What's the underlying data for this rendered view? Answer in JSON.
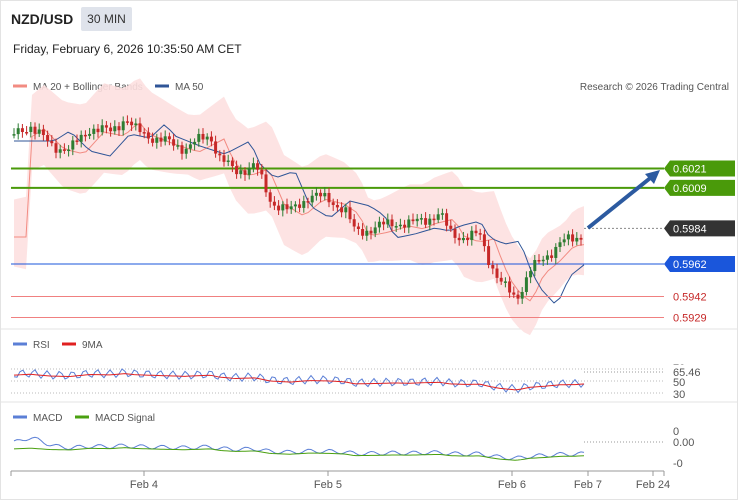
{
  "header": {
    "pair": "NZD/USD",
    "timeframe": "30 MIN",
    "datetime": "Friday, February 6, 2026 10:35:50 AM CET"
  },
  "copyright": "Research © 2026 Trading Central",
  "colors": {
    "up": "#2e7d32",
    "down": "#c62828",
    "ma20": "#f28b82",
    "ma50": "#2f5597",
    "band_fill": "#fde0e0",
    "resistance": "#4a9a0a",
    "support": "#1a56db",
    "weak_support": "#f08080",
    "arrow": "#2c5aa0",
    "rsi": "#5b7fd6",
    "rsi_ma": "#e02020",
    "macd": "#5b7fd6",
    "macd_signal": "#4aa010"
  },
  "chart_data": [
    {
      "type": "candlestick",
      "legend": [
        "MA 20 + Bollinger Bands",
        "MA 50"
      ],
      "legend_placement": "top-left",
      "ylim": [
        0.5922,
        0.6047
      ],
      "x_ticks": [
        "Feb 4",
        "Feb 5",
        "Feb 6",
        "Feb 7",
        "Feb 24"
      ],
      "levels": [
        {
          "value": 0.6021,
          "label": "0.6021",
          "kind": "resistance"
        },
        {
          "value": 0.6009,
          "label": "0.6009",
          "kind": "resistance"
        },
        {
          "value": 0.5984,
          "label": "0.5984",
          "kind": "last"
        },
        {
          "value": 0.5962,
          "label": "0.5962",
          "kind": "support"
        },
        {
          "value": 0.5942,
          "label": "0.5942",
          "kind": "weak"
        },
        {
          "value": 0.5929,
          "label": "0.5929",
          "kind": "weak"
        }
      ],
      "projection": {
        "from": 0.5984,
        "to": 0.602
      }
    },
    {
      "type": "line",
      "legend": [
        "RSI",
        "9MA"
      ],
      "y_ticks": [
        "70",
        "50",
        "30"
      ],
      "last_value": "65.46",
      "ylim": [
        25,
        75
      ]
    },
    {
      "type": "line",
      "legend": [
        "MACD",
        "MACD Signal"
      ],
      "y_ticks": [
        "0",
        "-0"
      ],
      "last_value": "0.00"
    }
  ]
}
